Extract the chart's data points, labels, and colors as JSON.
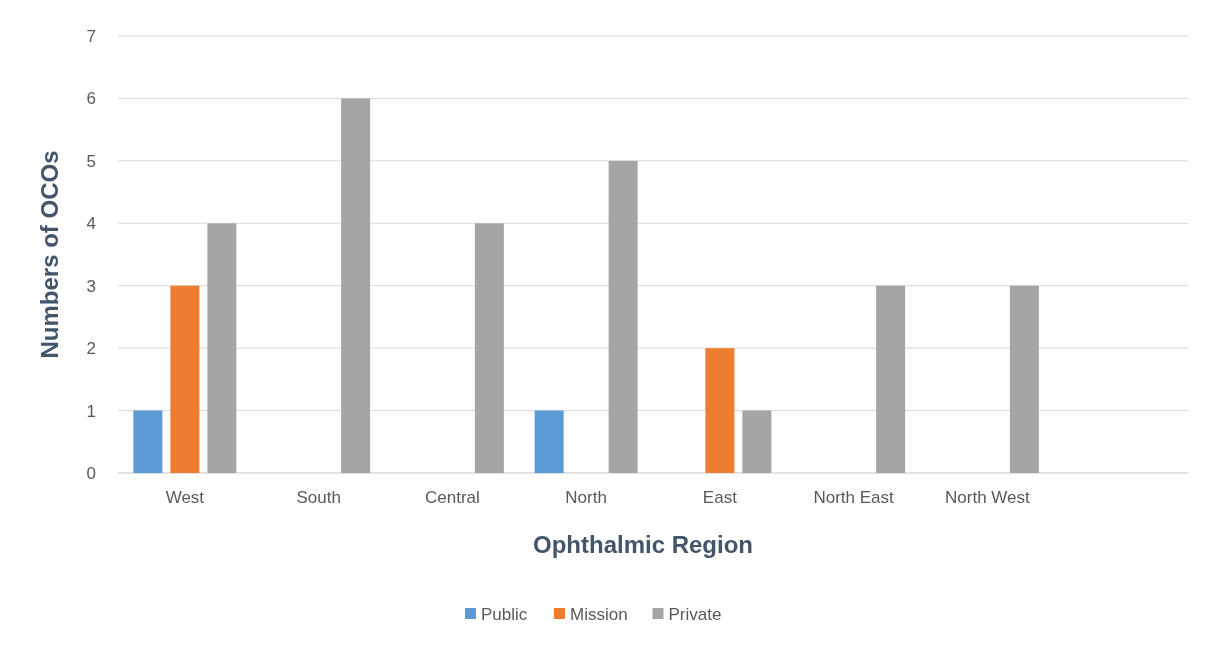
{
  "chart_data": {
    "type": "bar",
    "xlabel": "Ophthalmic Region",
    "ylabel": "Numbers of OCOs",
    "categories": [
      "West",
      "South",
      "Central",
      "North",
      "East",
      "North East",
      "North West",
      null
    ],
    "series": [
      {
        "name": "Public",
        "color": "#5b9bd5",
        "values": [
          1,
          0,
          0,
          1,
          0,
          0,
          0,
          null
        ]
      },
      {
        "name": "Mission",
        "color": "#ed7d31",
        "values": [
          3,
          0,
          0,
          0,
          2,
          0,
          0,
          null
        ]
      },
      {
        "name": "Private",
        "color": "#a5a5a5",
        "values": [
          4,
          6,
          4,
          5,
          1,
          3,
          3,
          null
        ]
      }
    ],
    "ylim": [
      0,
      7
    ],
    "yticks": [
      0,
      1,
      2,
      3,
      4,
      5,
      6,
      7
    ],
    "grid": "y",
    "legend": "bottom"
  }
}
